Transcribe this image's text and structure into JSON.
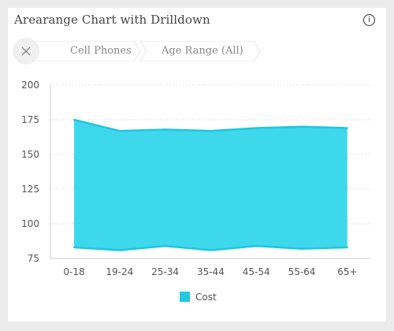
{
  "title": "Arearange Chart with Drilldown",
  "info_glyph": "i",
  "breadcrumbs": [
    "Cell Phones",
    "Age Range (All)"
  ],
  "colors": {
    "area": "#3ed8ec",
    "line": "#1fc6dc",
    "legend": "#22c8de"
  },
  "chart_data": {
    "type": "area",
    "categories": [
      "0-18",
      "19-24",
      "25-34",
      "35-44",
      "45-54",
      "55-64",
      "65+"
    ],
    "series": [
      {
        "name": "Cost",
        "low": [
          83,
          81,
          84,
          81,
          84,
          82,
          83
        ],
        "high": [
          175,
          167,
          168,
          167,
          169,
          170,
          169
        ]
      }
    ],
    "ylim": [
      75,
      200
    ],
    "yticks": [
      75,
      100,
      125,
      150,
      175,
      200
    ],
    "grid": true,
    "legend": "bottom-center"
  }
}
